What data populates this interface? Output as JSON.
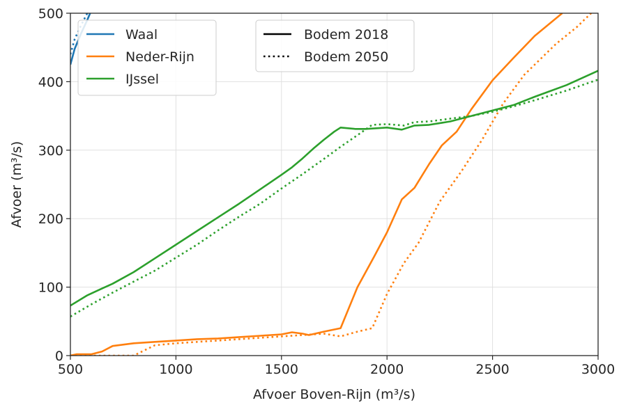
{
  "chart_data": {
    "type": "line",
    "xlabel": "Afvoer Boven-Rijn (m³/s)",
    "ylabel": "Afvoer (m³/s)",
    "xlim": [
      500,
      3000
    ],
    "ylim": [
      0,
      500
    ],
    "xticks": [
      500,
      1000,
      1500,
      2000,
      2500,
      3000
    ],
    "yticks": [
      0,
      100,
      200,
      300,
      400,
      500
    ],
    "grid": true,
    "legends": [
      {
        "placement": "top-left",
        "entries": [
          {
            "label": "Waal",
            "color": "#1f77b4"
          },
          {
            "label": "Neder-Rijn",
            "color": "#ff7f0e"
          },
          {
            "label": "IJssel",
            "color": "#2ca02c"
          }
        ]
      },
      {
        "placement": "top-center",
        "entries": [
          {
            "label": "Bodem 2018",
            "style": "solid",
            "color": "#000000"
          },
          {
            "label": "Bodem 2050",
            "style": "dotted",
            "color": "#000000"
          }
        ]
      }
    ],
    "series": [
      {
        "name": "Waal",
        "scenario": "Bodem 2018",
        "color": "#1f77b4",
        "style": "solid",
        "x": [
          500,
          520,
          550,
          580,
          600
        ],
        "y": [
          425,
          448,
          470,
          490,
          505
        ]
      },
      {
        "name": "Waal",
        "scenario": "Bodem 2050",
        "color": "#1f77b4",
        "style": "dotted",
        "x": [
          500,
          520,
          550,
          580,
          600
        ],
        "y": [
          440,
          462,
          482,
          500,
          512
        ]
      },
      {
        "name": "Neder-Rijn",
        "scenario": "Bodem 2018",
        "color": "#ff7f0e",
        "style": "solid",
        "x": [
          500,
          530,
          600,
          650,
          700,
          800,
          900,
          1000,
          1100,
          1200,
          1300,
          1400,
          1500,
          1550,
          1600,
          1630,
          1700,
          1780,
          1860,
          1940,
          2000,
          2070,
          2130,
          2200,
          2260,
          2330,
          2400,
          2500,
          2600,
          2700,
          2830
        ],
        "y": [
          0,
          2,
          2,
          6,
          14,
          18,
          20,
          22,
          24,
          25,
          27,
          29,
          31,
          34,
          32,
          30,
          35,
          40,
          100,
          145,
          180,
          228,
          245,
          280,
          307,
          327,
          360,
          402,
          435,
          467,
          500
        ]
      },
      {
        "name": "Neder-Rijn",
        "scenario": "Bodem 2050",
        "color": "#ff7f0e",
        "style": "dotted",
        "x": [
          500,
          700,
          800,
          900,
          1000,
          1100,
          1200,
          1300,
          1400,
          1500,
          1600,
          1700,
          1780,
          1860,
          1930,
          2000,
          2080,
          2150,
          2250,
          2350,
          2450,
          2550,
          2650,
          2800,
          2900,
          3000
        ],
        "y": [
          0,
          0,
          0,
          15,
          18,
          20,
          22,
          24,
          26,
          28,
          30,
          32,
          28,
          35,
          40,
          90,
          135,
          165,
          225,
          268,
          315,
          368,
          410,
          455,
          480,
          510
        ]
      },
      {
        "name": "IJssel",
        "scenario": "Bodem 2018",
        "color": "#2ca02c",
        "style": "solid",
        "x": [
          500,
          580,
          650,
          700,
          800,
          900,
          1000,
          1100,
          1200,
          1300,
          1400,
          1500,
          1550,
          1600,
          1650,
          1700,
          1750,
          1780,
          1850,
          1900,
          2000,
          2070,
          2130,
          2200,
          2300,
          2400,
          2500,
          2600,
          2700,
          2850,
          3000
        ],
        "y": [
          73,
          88,
          98,
          105,
          122,
          142,
          162,
          182,
          202,
          222,
          243,
          264,
          275,
          288,
          302,
          315,
          327,
          333,
          331,
          331,
          333,
          330,
          336,
          337,
          342,
          350,
          358,
          366,
          378,
          395,
          416
        ]
      },
      {
        "name": "IJssel",
        "scenario": "Bodem 2050",
        "color": "#2ca02c",
        "style": "dotted",
        "x": [
          500,
          600,
          700,
          800,
          900,
          1000,
          1100,
          1200,
          1300,
          1400,
          1500,
          1600,
          1700,
          1780,
          1860,
          1930,
          2000,
          2080,
          2130,
          2200,
          2300,
          2400,
          2500,
          2600,
          2700,
          2850,
          3000
        ],
        "y": [
          57,
          75,
          92,
          108,
          124,
          143,
          162,
          183,
          203,
          222,
          244,
          265,
          287,
          305,
          322,
          337,
          338,
          336,
          341,
          342,
          346,
          350,
          356,
          364,
          373,
          387,
          403
        ]
      }
    ]
  }
}
